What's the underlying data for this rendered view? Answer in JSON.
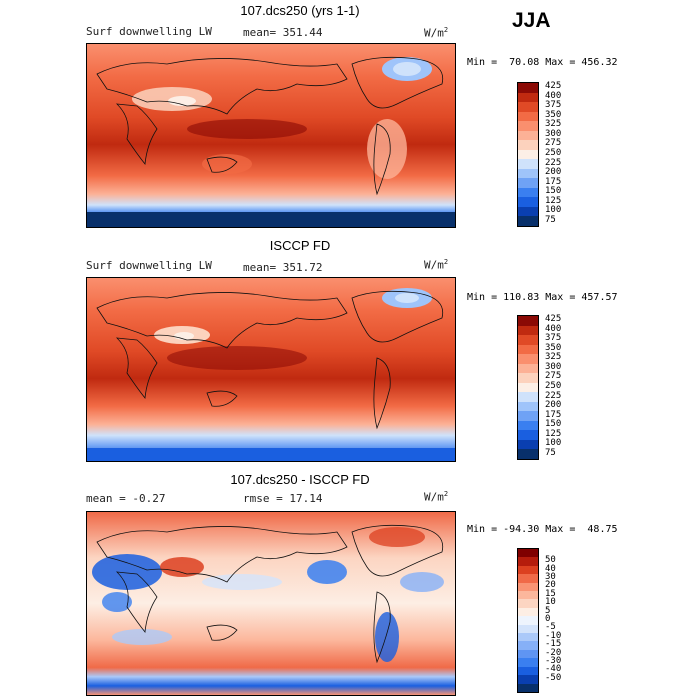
{
  "season": "JJA",
  "panels": [
    {
      "title": "107.dcs250 (yrs 1-1)",
      "left_label": "Surf downwelling LW",
      "mid_label": "mean= 351.44",
      "units_base": "W/m",
      "units_exp": "2",
      "minmax": "Min =  70.08 Max = 456.32",
      "colorbar": {
        "colors": [
          "#08306b",
          "#0a3fb0",
          "#1a5fe0",
          "#3a7ff0",
          "#6fa2f5",
          "#9fc4fa",
          "#cfe2fb",
          "#fcefe6",
          "#fcd2bd",
          "#fcb196",
          "#fa8f6e",
          "#f26b45",
          "#e04a26",
          "#c02a10",
          "#8b0a05"
        ],
        "labels": [
          "75",
          "100",
          "125",
          "150",
          "175",
          "200",
          "225",
          "250",
          "275",
          "300",
          "325",
          "350",
          "375",
          "400",
          "425"
        ]
      }
    },
    {
      "title": "ISCCP FD",
      "left_label": "Surf downwelling LW",
      "mid_label": "mean= 351.72",
      "units_base": "W/m",
      "units_exp": "2",
      "minmax": "Min = 110.83 Max = 457.57",
      "colorbar": {
        "colors": [
          "#08306b",
          "#0a3fb0",
          "#1a5fe0",
          "#3a7ff0",
          "#6fa2f5",
          "#9fc4fa",
          "#cfe2fb",
          "#fcefe6",
          "#fcd2bd",
          "#fcb196",
          "#fa8f6e",
          "#f26b45",
          "#e04a26",
          "#c02a10",
          "#8b0a05"
        ],
        "labels": [
          "75",
          "100",
          "125",
          "150",
          "175",
          "200",
          "225",
          "250",
          "275",
          "300",
          "325",
          "350",
          "375",
          "400",
          "425"
        ]
      }
    },
    {
      "title": "107.dcs250 - ISCCP FD",
      "left_label": "mean =   -0.27",
      "mid_label": "rmse =   17.14",
      "units_base": "W/m",
      "units_exp": "2",
      "minmax": "Min = -94.30 Max =  48.75",
      "colorbar": {
        "colors": [
          "#08306b",
          "#0a3fb0",
          "#1a5fe0",
          "#3a7ff0",
          "#5f95f3",
          "#86b0f7",
          "#abc9f9",
          "#d3e3fb",
          "#eef4fd",
          "#fdeee4",
          "#fcd5c2",
          "#fcb79c",
          "#f99474",
          "#f06a48",
          "#dc4020",
          "#b51c0c",
          "#7f0000"
        ],
        "labels": [
          "-50",
          "-40",
          "-30",
          "-20",
          "-15",
          "-10",
          "-5",
          "0",
          "5",
          "10",
          "15",
          "20",
          "30",
          "40",
          "50"
        ]
      }
    }
  ]
}
